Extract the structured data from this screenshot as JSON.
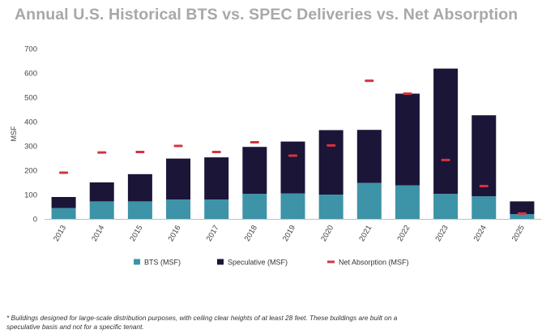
{
  "chart_data": {
    "type": "bar",
    "stacked": true,
    "title": "Annual U.S. Historical BTS vs. SPEC Deliveries vs. Net Absorption",
    "xlabel": "",
    "ylabel": "MSF",
    "ylim": [
      0,
      700
    ],
    "yticks": [
      0,
      100,
      200,
      300,
      400,
      500,
      600,
      700
    ],
    "categories": [
      "2013",
      "2014",
      "2015",
      "2016",
      "2017",
      "2018",
      "2019",
      "2020",
      "2021",
      "2022",
      "2023",
      "2024",
      "2025"
    ],
    "series": [
      {
        "name": "BTS (MSF)",
        "kind": "bar",
        "color": "#3d93a8",
        "values": [
          45,
          72,
          72,
          80,
          80,
          103,
          105,
          100,
          148,
          138,
          103,
          93,
          20
        ]
      },
      {
        "name": "Speculative (MSF)",
        "kind": "bar",
        "color": "#1b1538",
        "values": [
          45,
          78,
          112,
          168,
          173,
          193,
          213,
          265,
          218,
          377,
          515,
          333,
          52
        ]
      },
      {
        "name": "Net Absorption (MSF)",
        "kind": "marker",
        "color": "#d6333f",
        "values": [
          190,
          273,
          275,
          300,
          275,
          315,
          260,
          302,
          568,
          515,
          242,
          135,
          22
        ]
      }
    ],
    "legend_position": "bottom"
  },
  "footnote": "* Buildings designed for large-scale distribution purposes, with ceiling clear heights of at least 28 feet. These buildings are built on a speculative basis and not for a specific tenant."
}
